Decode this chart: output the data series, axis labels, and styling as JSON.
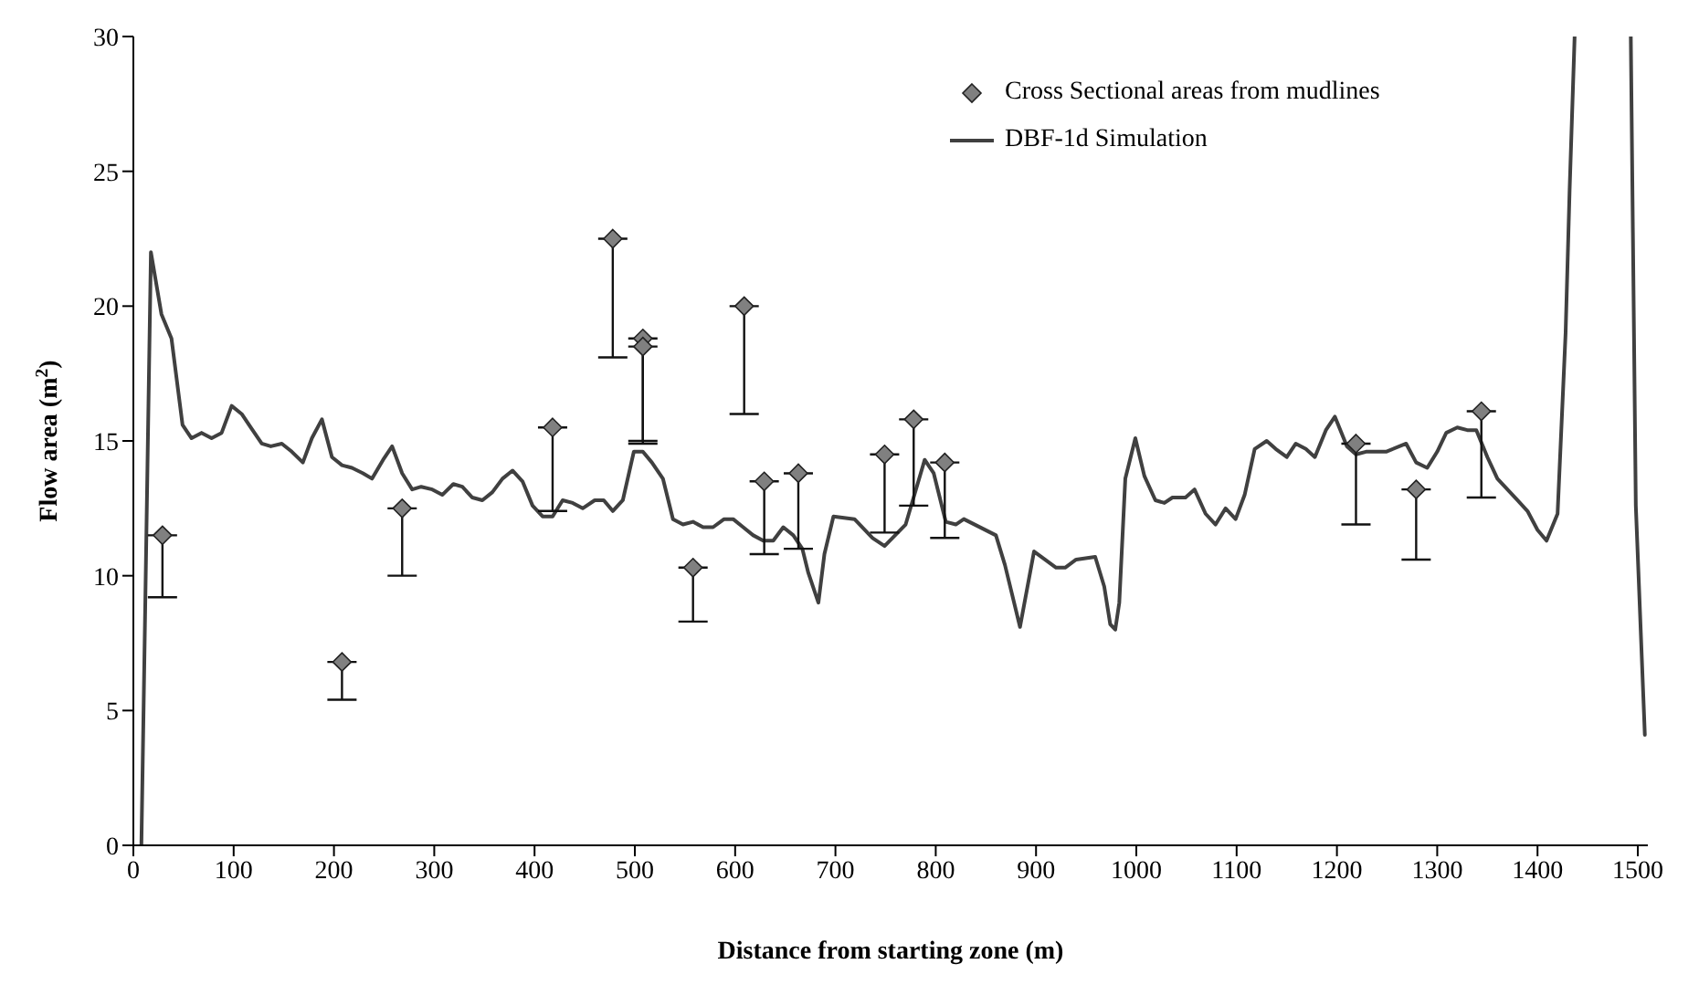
{
  "chart_data": {
    "type": "line",
    "xlabel": "Distance from starting zone (m)",
    "ylabel": "Flow area (m$^{2}$)",
    "xlim": [
      0,
      1510
    ],
    "ylim": [
      0,
      30
    ],
    "xticks": [
      0,
      100,
      200,
      300,
      400,
      500,
      600,
      700,
      800,
      900,
      1000,
      1100,
      1200,
      1300,
      1400,
      1500
    ],
    "yticks": [
      0,
      5,
      10,
      15,
      20,
      25,
      30
    ],
    "grid": false,
    "legend": "top right",
    "series": [
      {
        "name": "Cross Sectional areas from mudlines",
        "type": "scatter",
        "color": "#808080",
        "marker": "diamond",
        "x": [
          29,
          208,
          268,
          418,
          478,
          508,
          508,
          558,
          609,
          629,
          663,
          749,
          778,
          809,
          1219,
          1279,
          1344
        ],
        "values": [
          11.5,
          6.8,
          12.5,
          15.5,
          22.5,
          18.8,
          18.5,
          10.3,
          20.0,
          13.5,
          13.8,
          14.5,
          15.8,
          14.2,
          14.9,
          13.2,
          16.1
        ],
        "errors": [
          [
            9.2,
            11.5
          ],
          [
            5.4,
            6.8
          ],
          [
            10.0,
            12.5
          ],
          [
            12.4,
            15.5
          ],
          [
            18.1,
            22.5
          ],
          [
            15.0,
            18.8
          ],
          [
            14.9,
            18.5
          ],
          [
            8.3,
            10.3
          ],
          [
            16.0,
            20.0
          ],
          [
            10.8,
            13.5
          ],
          [
            11.0,
            13.8
          ],
          [
            11.6,
            14.5
          ],
          [
            12.6,
            15.8
          ],
          [
            11.4,
            14.2
          ],
          [
            11.9,
            14.9
          ],
          [
            10.6,
            13.2
          ],
          [
            12.9,
            16.1
          ]
        ]
      },
      {
        "name": "DBF-1d Simulation",
        "color": "#404040",
        "marker": "none",
        "line_style": "solid",
        "x": [
          8,
          17.5,
          28,
          38,
          49,
          58,
          68,
          78,
          88,
          98,
          108,
          117,
          128,
          137,
          148,
          158,
          169,
          178,
          188,
          198,
          208,
          218,
          229,
          238,
          249,
          258,
          268,
          278,
          287,
          298,
          308,
          319,
          328,
          338,
          348,
          358,
          368,
          378,
          388,
          398,
          408,
          418,
          428,
          438,
          448,
          460,
          469,
          478,
          488,
          499,
          508,
          517,
          528,
          538,
          548,
          558,
          568,
          578,
          589,
          598,
          608,
          618,
          628,
          638,
          648,
          658,
          667,
          673,
          683,
          689,
          698,
          719,
          737,
          749,
          770,
          789,
          798,
          810,
          820,
          828,
          860,
          869,
          884,
          898,
          920,
          929,
          940,
          959,
          968,
          974,
          979,
          983,
          989,
          999,
          1008,
          1019,
          1028,
          1036,
          1049,
          1058,
          1069,
          1079,
          1089,
          1099,
          1108,
          1118,
          1130,
          1139,
          1150,
          1159,
          1169,
          1178,
          1189,
          1198,
          1210,
          1219,
          1229,
          1249,
          1269,
          1279,
          1290,
          1300,
          1309,
          1320,
          1330,
          1339,
          1350,
          1360,
          1380,
          1390,
          1400,
          1409,
          1420,
          1428,
          1432,
          1437,
          1465,
          1493,
          1498,
          1507
        ],
        "values": [
          0,
          22.0,
          19.7,
          18.8,
          15.6,
          15.1,
          15.3,
          15.1,
          15.3,
          16.3,
          16.0,
          15.5,
          14.9,
          14.8,
          14.9,
          14.6,
          14.2,
          15.1,
          15.8,
          14.4,
          14.1,
          14.0,
          13.8,
          13.6,
          14.3,
          14.8,
          13.8,
          13.2,
          13.3,
          13.2,
          13.0,
          13.4,
          13.3,
          12.9,
          12.8,
          13.1,
          13.6,
          13.9,
          13.5,
          12.6,
          12.2,
          12.2,
          12.8,
          12.7,
          12.5,
          12.8,
          12.8,
          12.4,
          12.8,
          14.6,
          14.6,
          14.2,
          13.6,
          12.1,
          11.9,
          12.0,
          11.8,
          11.8,
          12.1,
          12.1,
          11.8,
          11.5,
          11.3,
          11.3,
          11.8,
          11.5,
          11.0,
          10.1,
          9.0,
          10.8,
          12.2,
          12.1,
          11.4,
          11.1,
          11.9,
          14.3,
          13.8,
          12.0,
          11.9,
          12.1,
          11.5,
          10.4,
          8.1,
          10.9,
          10.3,
          10.3,
          10.6,
          10.7,
          9.6,
          8.2,
          8.0,
          9.0,
          13.6,
          15.1,
          13.7,
          12.8,
          12.7,
          12.9,
          12.9,
          13.2,
          12.3,
          11.9,
          12.5,
          12.1,
          13.0,
          14.7,
          15.0,
          14.7,
          14.4,
          14.9,
          14.7,
          14.4,
          15.4,
          15.9,
          14.8,
          14.5,
          14.6,
          14.6,
          14.9,
          14.2,
          14.0,
          14.6,
          15.3,
          15.5,
          15.4,
          15.4,
          14.4,
          13.6,
          12.8,
          12.4,
          11.7,
          11.3,
          12.3,
          19.0,
          24.3,
          30,
          null,
          30,
          12.6,
          4.1
        ]
      }
    ]
  }
}
